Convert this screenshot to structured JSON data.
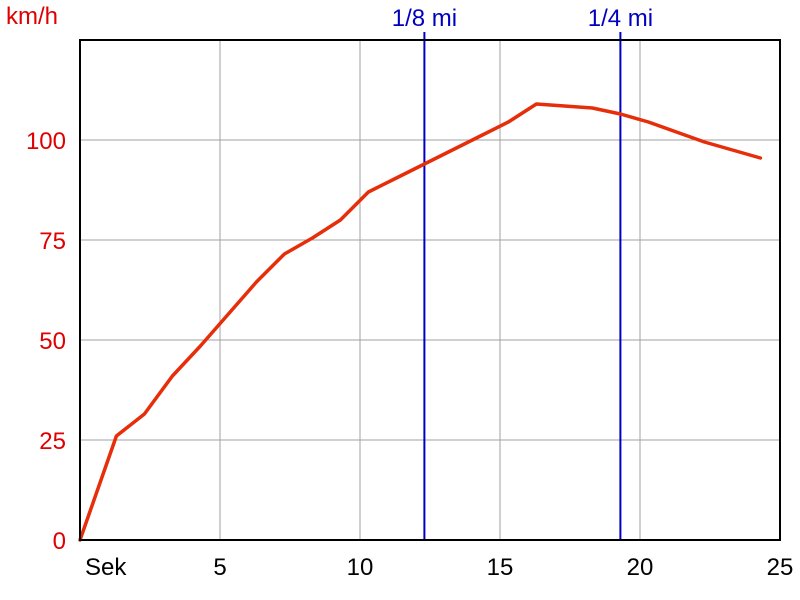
{
  "chart_data": {
    "type": "line",
    "ylabel": "km/h",
    "xlabel": "Sek",
    "xlim": [
      0,
      25
    ],
    "ylim": [
      0,
      125
    ],
    "x_ticks": [
      5,
      10,
      15,
      20,
      25
    ],
    "y_ticks": [
      0,
      25,
      50,
      75,
      100
    ],
    "grid": true,
    "series": [
      {
        "x": [
          0,
          1.3,
          2.3,
          3.3,
          4.3,
          5.3,
          6.3,
          7.3,
          8.3,
          9.3,
          10.3,
          11.3,
          12.3,
          13.3,
          14.3,
          15.3,
          16.3,
          17.3,
          18.3,
          19.3,
          20.3,
          21.3,
          22.3,
          23.3,
          24.3
        ],
        "y": [
          0,
          26,
          31.5,
          41,
          48.5,
          56.5,
          64.5,
          71.5,
          75.5,
          80,
          87,
          90.5,
          94,
          97.5,
          101,
          104.5,
          109,
          108.5,
          108,
          106.5,
          104.5,
          102,
          99.5,
          97.5,
          95.5
        ]
      }
    ],
    "markers": [
      {
        "x": 12.3,
        "label": "1/8 mi"
      },
      {
        "x": 19.3,
        "label": "1/4 mi"
      }
    ]
  },
  "colors": {
    "line": "#e62e0a",
    "axis_label": "#e00000",
    "marker": "#0000c0",
    "grid": "#a0a0a0",
    "frame": "#000000"
  }
}
